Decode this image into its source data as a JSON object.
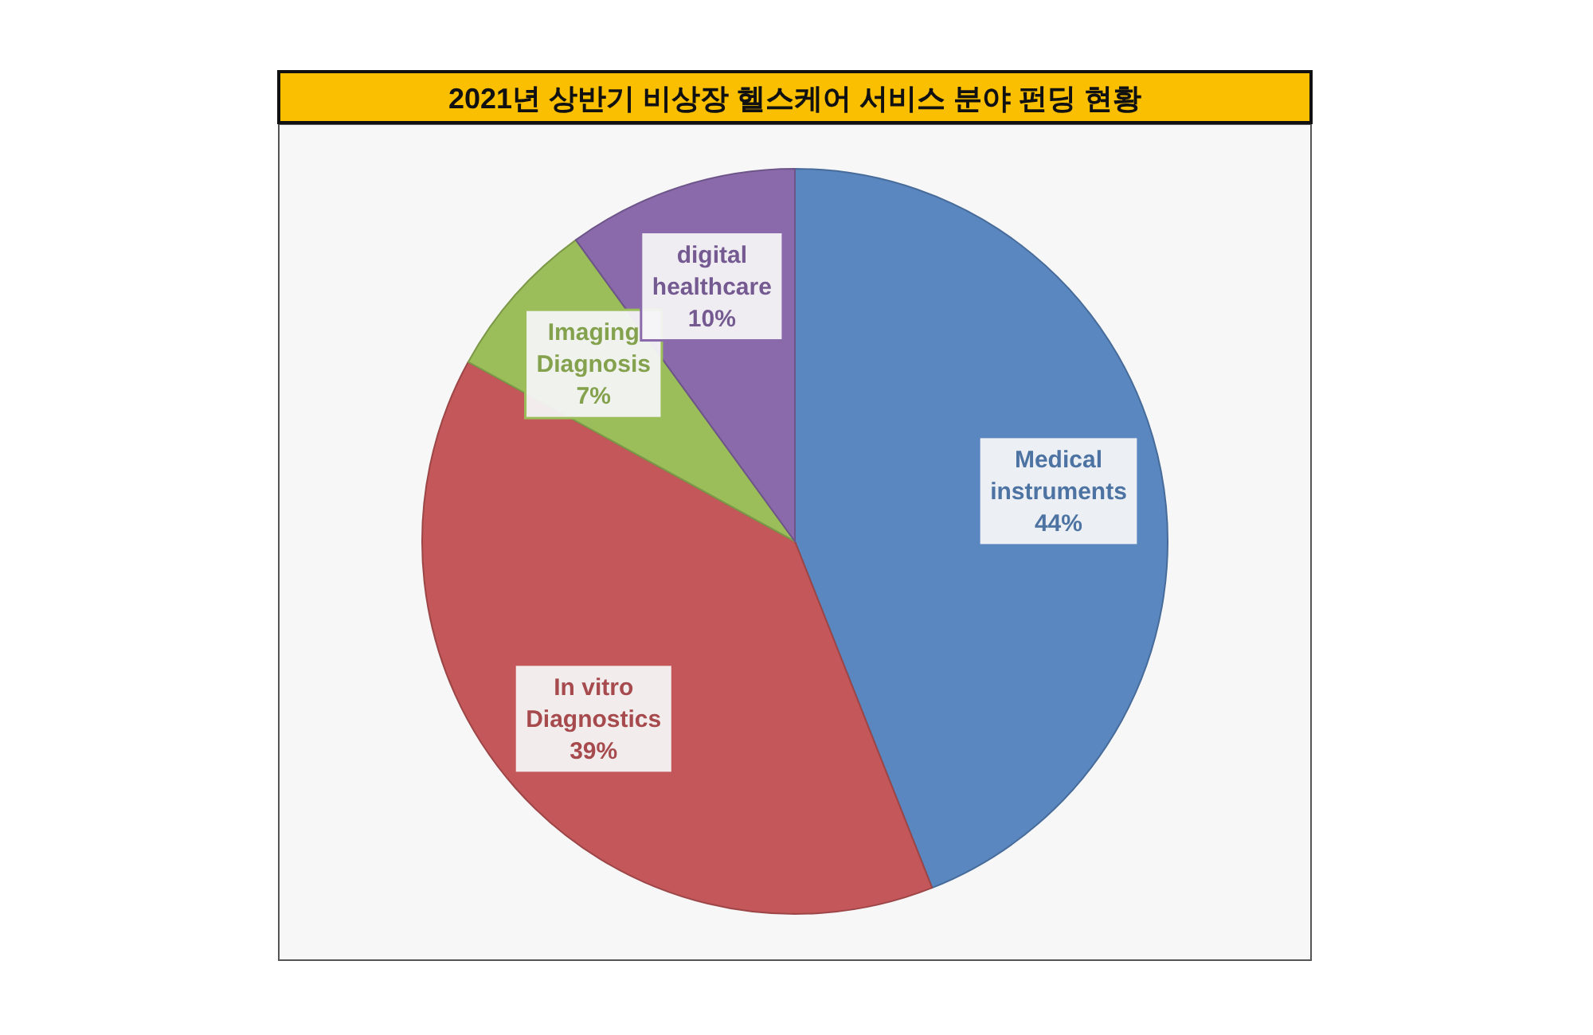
{
  "chart_data": {
    "type": "pie",
    "title": "2021년 상반기 비상장 헬스케어 서비스 분야 펀딩 현황",
    "categories": [
      "Medical instruments",
      "In vitro Diagnostics",
      "Imaging Diagnosis",
      "digital healthcare"
    ],
    "values": [
      44,
      39,
      7,
      10
    ],
    "colors": [
      "#5a87c0",
      "#c4575a",
      "#9bbe5a",
      "#8a6aab"
    ],
    "value_labels": [
      "44%",
      "39%",
      "7%",
      "10%"
    ],
    "legend": false
  }
}
